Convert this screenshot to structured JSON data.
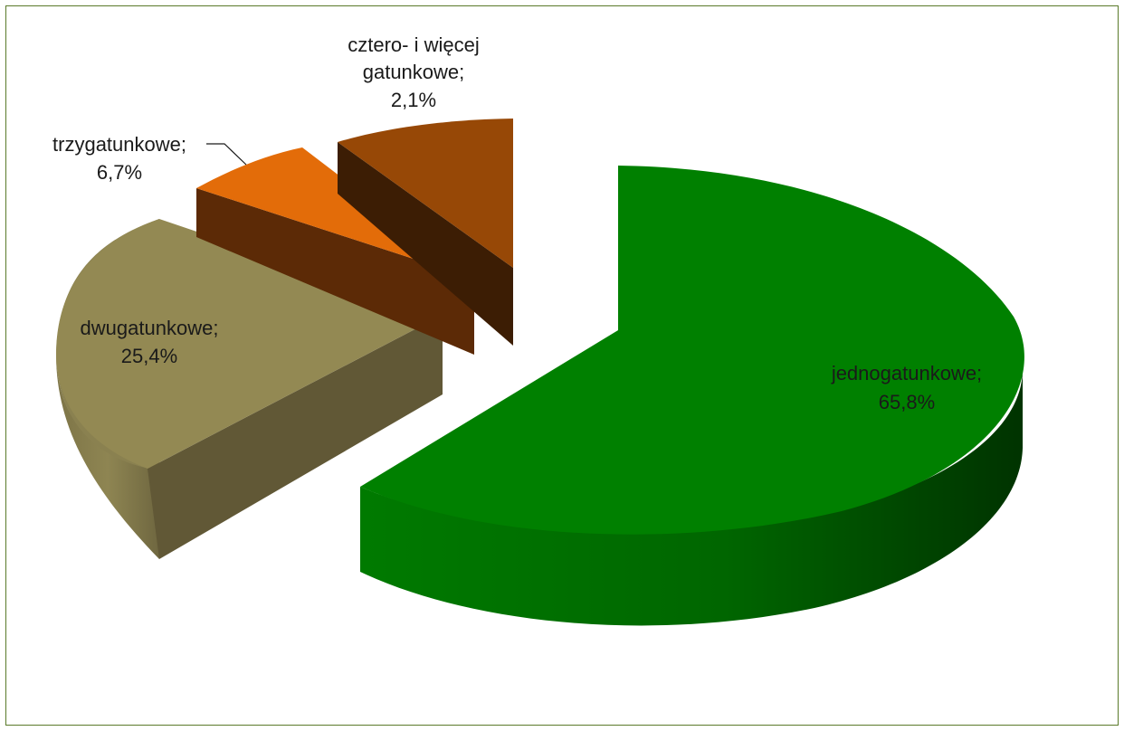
{
  "chart_data": {
    "type": "pie",
    "style": "3d-exploded",
    "title": "",
    "series": [
      {
        "name": "",
        "values": [
          {
            "category": "jednogatunkowe",
            "value": 65.8,
            "label": "jednogatunkowe;",
            "value_label": "65,8%",
            "color": "#008000"
          },
          {
            "category": "dwugatunkowe",
            "value": 25.4,
            "label": "dwugatunkowe;",
            "value_label": "25,4%",
            "color": "#938953"
          },
          {
            "category": "trzygatunkowe",
            "value": 6.7,
            "label": "trzygatunkowe;",
            "value_label": "6,7%",
            "color": "#e36c09"
          },
          {
            "category": "cztero- i więcej gatunkowe",
            "value": 2.1,
            "label_lines": [
              "cztero- i więcej",
              "gatunkowe;"
            ],
            "value_label": "2,1%",
            "color": "#974806"
          }
        ]
      }
    ],
    "legend": "none",
    "border_color": "#5a7a2a"
  }
}
